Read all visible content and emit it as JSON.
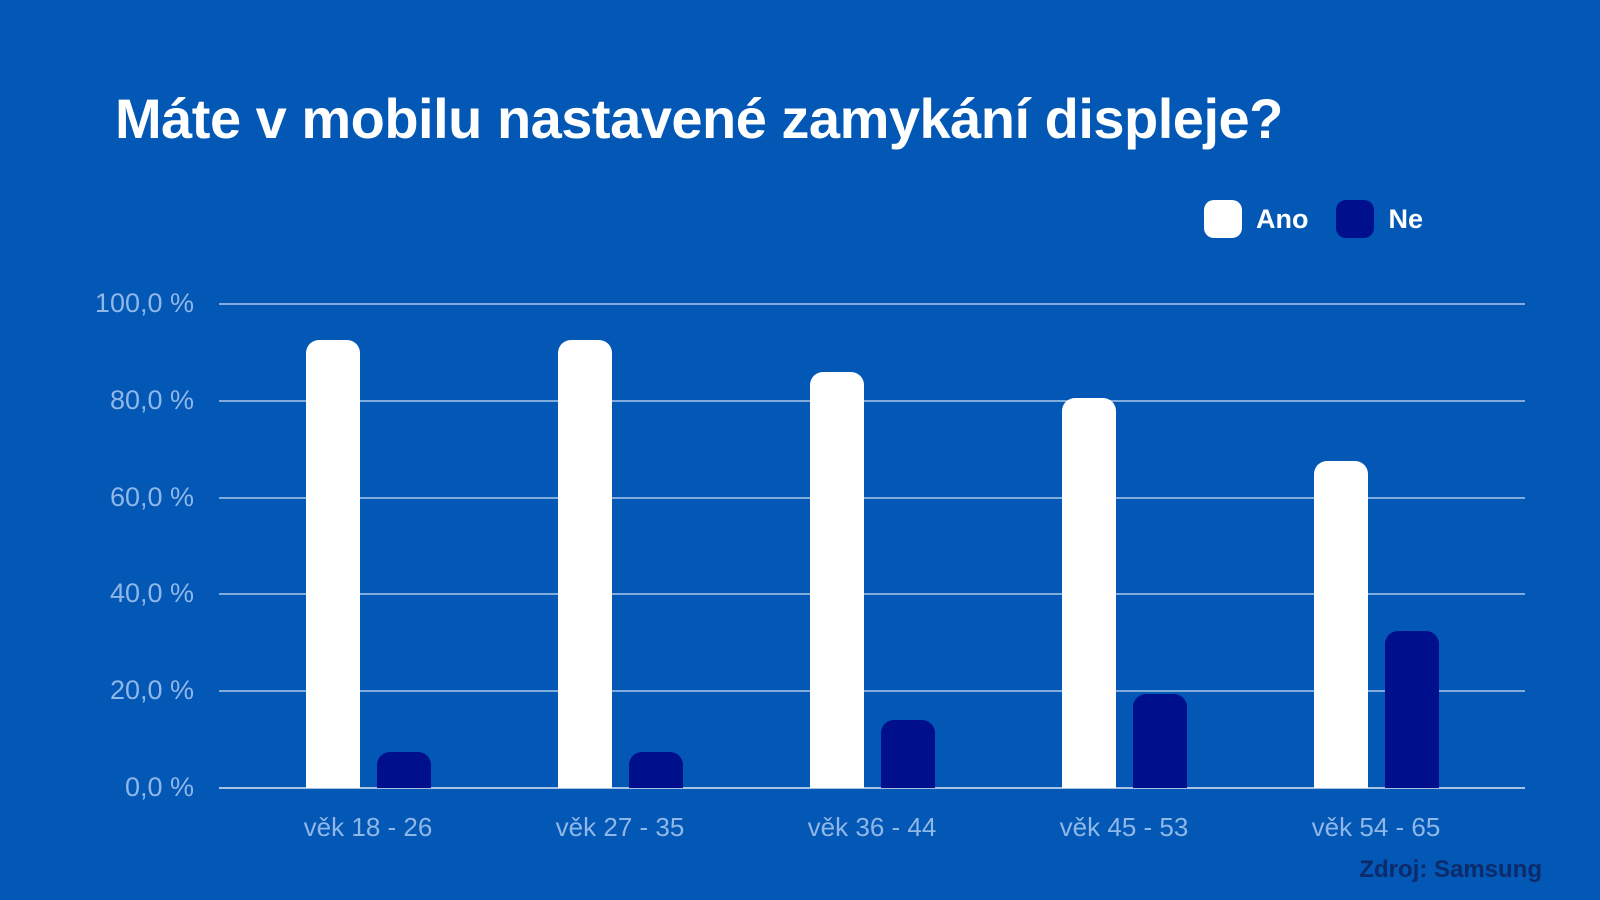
{
  "page": {
    "background_color": "#0357B5",
    "source_label": "Zdroj: Samsung"
  },
  "chart_data": {
    "type": "bar",
    "title": "Máte v mobilu nastavené zamykání displeje?",
    "categories": [
      "věk 18 - 26",
      "věk 27 - 35",
      "věk 36 - 44",
      "věk 45 - 53",
      "věk 54 - 65"
    ],
    "series": [
      {
        "name": "Ano",
        "color": "#FFFFFF",
        "values": [
          92.5,
          92.5,
          86.0,
          80.5,
          67.5
        ]
      },
      {
        "name": "Ne",
        "color": "#000F8C",
        "values": [
          7.5,
          7.5,
          14.0,
          19.5,
          32.5
        ]
      }
    ],
    "xlabel": "",
    "ylabel": "",
    "ylim": [
      0,
      100
    ],
    "ytick_labels": [
      "100,0 %",
      "80,0 %",
      "60,0 %",
      "40,0 %",
      "20,0 %",
      "0,0 %"
    ],
    "ytick_values": [
      100,
      80,
      60,
      40,
      20,
      0
    ],
    "grid": true,
    "legend_position": "top-right",
    "colors": {
      "background": "#0357B5",
      "axis_label": "#8FB7E8",
      "gridline": "rgba(255,255,255,0.5)",
      "title_text": "#FFFFFF",
      "source_text": "#0B2B6B"
    }
  }
}
